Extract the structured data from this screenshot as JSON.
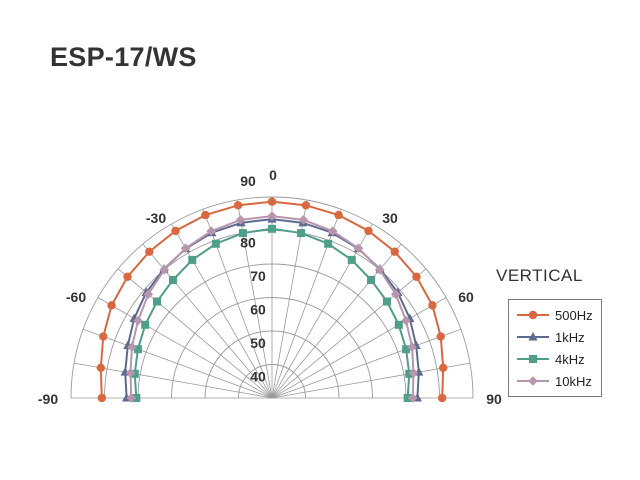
{
  "chart_data": {
    "type": "line",
    "coordinate_system": "polar-half",
    "title": "ESP-17/WS",
    "subtitle": "VERTICAL",
    "angle_ticks": [
      {
        "angle": 0,
        "label": "0"
      },
      {
        "angle": -30,
        "label": "-30"
      },
      {
        "angle": 30,
        "label": "30"
      },
      {
        "angle": -60,
        "label": "-60"
      },
      {
        "angle": 60,
        "label": "60"
      },
      {
        "angle": -90,
        "label": "-90"
      },
      {
        "angle": 90,
        "label": "90"
      }
    ],
    "radial_ticks": [
      {
        "value": 40,
        "label": "40"
      },
      {
        "value": 50,
        "label": "50"
      },
      {
        "value": 60,
        "label": "60"
      },
      {
        "value": 70,
        "label": "70"
      },
      {
        "value": 80,
        "label": "80"
      },
      {
        "value": 90,
        "label": "90"
      }
    ],
    "rlim": [
      30,
      90
    ],
    "angle_range": [
      -90,
      90
    ],
    "angle_grid_step": 10,
    "grid": true,
    "legend_position": "right",
    "angles": [
      -90,
      -80,
      -70,
      -60,
      -50,
      -40,
      -30,
      -20,
      -10,
      0,
      10,
      20,
      30,
      40,
      50,
      60,
      70,
      80,
      90
    ],
    "series": [
      {
        "name": "500Hz",
        "color": "#d9673f",
        "marker": "circle",
        "values": [
          80.8,
          81.9,
          83.6,
          85.3,
          86.3,
          87.0,
          87.6,
          88.1,
          88.4,
          88.6,
          88.4,
          88.1,
          87.6,
          87.0,
          86.3,
          85.3,
          83.6,
          81.9,
          80.8
        ]
      },
      {
        "name": "1kHz",
        "color": "#5c6a8f",
        "marker": "triangle",
        "values": [
          73.4,
          74.5,
          75.8,
          77.5,
          79.0,
          80.2,
          81.5,
          82.5,
          83.1,
          83.4,
          83.1,
          82.5,
          81.5,
          80.2,
          79.0,
          77.5,
          75.8,
          74.5,
          73.4
        ]
      },
      {
        "name": "4kHz",
        "color": "#4f9e8a",
        "marker": "square",
        "values": [
          70.5,
          71.6,
          72.6,
          73.7,
          74.8,
          76.0,
          77.6,
          79.0,
          80.0,
          80.5,
          80.0,
          79.0,
          77.6,
          76.0,
          74.8,
          73.7,
          72.6,
          71.6,
          70.5
        ]
      },
      {
        "name": "10kHz",
        "color": "#b796ad",
        "marker": "diamond",
        "values": [
          72.0,
          72.9,
          74.5,
          76.2,
          78.2,
          80.0,
          81.6,
          83.0,
          84.0,
          84.3,
          84.0,
          83.0,
          81.6,
          80.0,
          78.2,
          76.2,
          74.5,
          72.9,
          72.0
        ]
      }
    ]
  }
}
